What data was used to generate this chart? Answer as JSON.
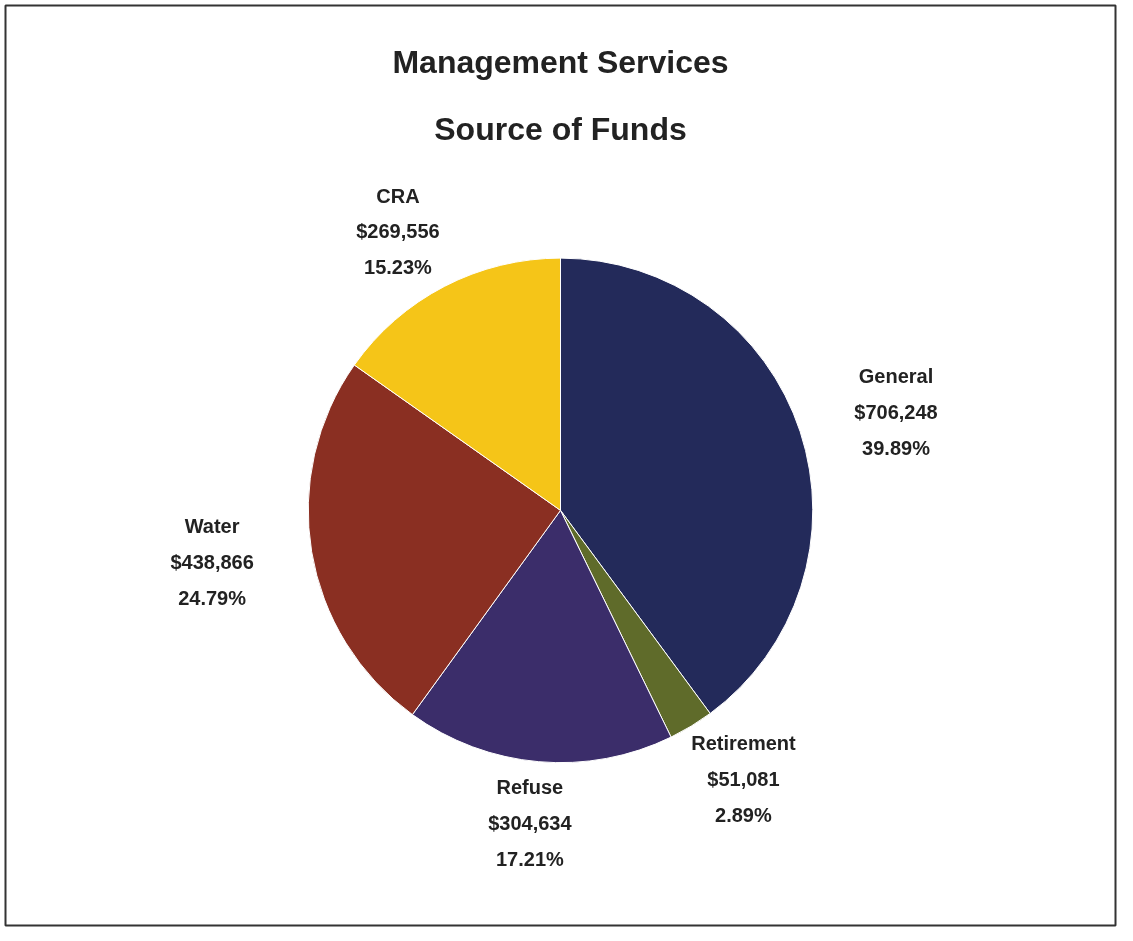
{
  "chart_data": {
    "type": "pie",
    "title": "Management Services\nSource of Funds",
    "categories": [
      "General",
      "Retirement",
      "Refuse",
      "Water",
      "CRA"
    ],
    "values": [
      706248,
      51081,
      304634,
      438866,
      269556
    ],
    "colors": [
      "#232a5a",
      "#5f6b2a",
      "#3b2d6a",
      "#8a2f22",
      "#f5c518"
    ],
    "value_labels": [
      "$706,248\n39.89%",
      "$51,081\n2.89%",
      "$304,634\n17.21%",
      "$438,866\n24.79%",
      "$269,556\n15.23%"
    ]
  }
}
